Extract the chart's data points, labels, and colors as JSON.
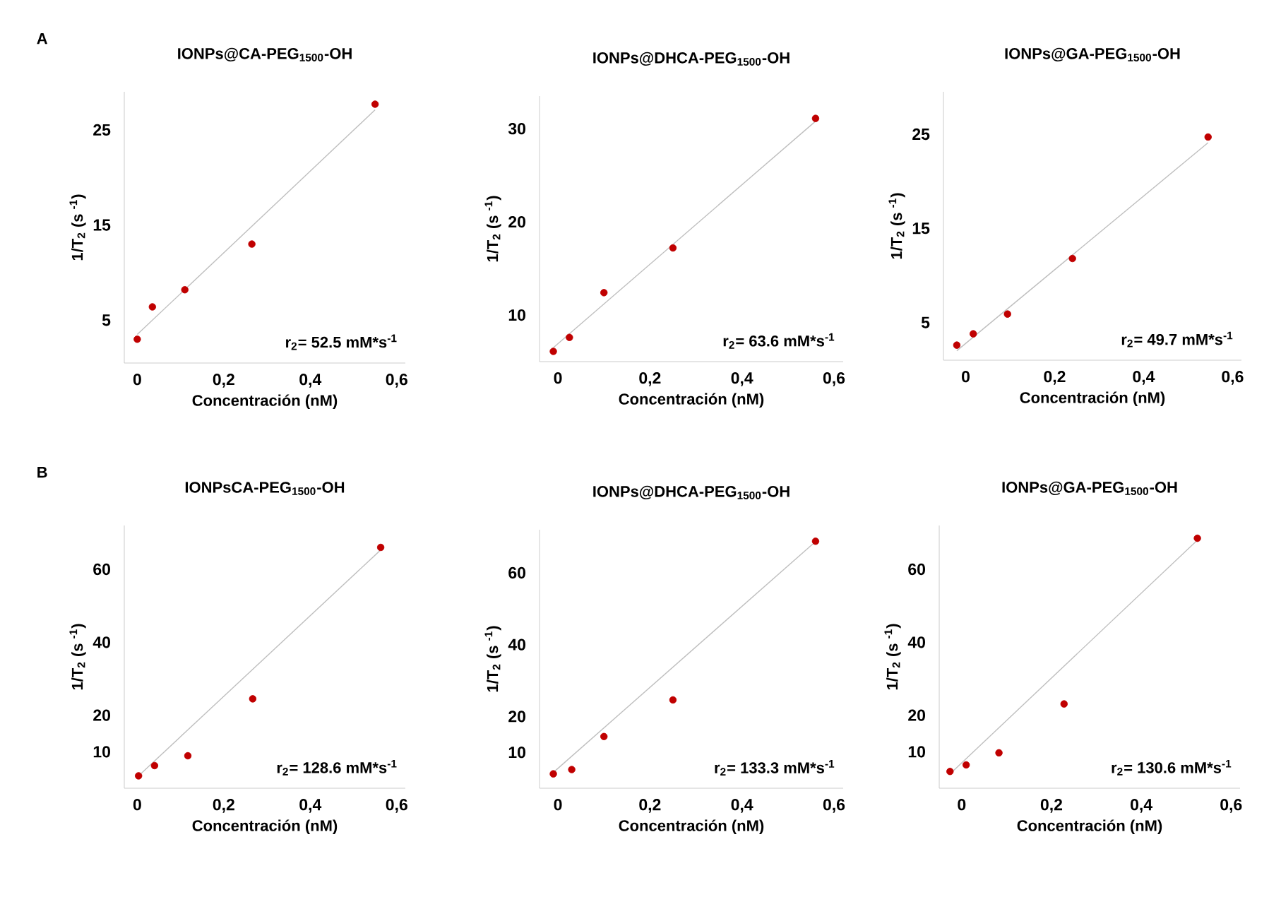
{
  "chart_data": [
    {
      "type": "scatter",
      "title": "IONPs@CA-PEG$_{1500}$-OH",
      "xlabel": "Concentración (nM)",
      "ylabel": "1/T$_{2}$ (s $^{-1}$)",
      "annotations": [
        "r$_{2}$= 52.5 mM*s$^{-1}$",
        "A"
      ],
      "xlim": [
        -0.03,
        0.62
      ],
      "ylim": [
        0.5,
        29
      ],
      "xticks": [
        0,
        {
          "value": 0.2,
          "label": "0,2"
        },
        {
          "value": 0.4,
          "label": "0,4"
        },
        {
          "value": 0.6,
          "label": "0,6"
        }
      ],
      "yticks": [
        5,
        15,
        25
      ],
      "series": [
        {
          "color": "#c00000",
          "x": [
            0,
            0.035,
            0.11,
            0.265,
            0.55
          ],
          "values": [
            3.0,
            6.4,
            8.2,
            13.0,
            27.7
          ]
        },
        {
          "type": "line",
          "color": "#bfbfbf",
          "x": [
            0,
            0.55
          ],
          "values": [
            3.5,
            27.1
          ]
        }
      ]
    },
    {
      "type": "scatter",
      "title": "IONPs@DHCA-PEG$_{1500}$-OH",
      "xlabel": "Concentración (nM)",
      "ylabel": "1/T$_{2}$ (s $^{-1}$)",
      "annotations": [
        "r$_{2}$= 63.6 mM*s$^{-1}$"
      ],
      "xlim": [
        -0.04,
        0.62
      ],
      "ylim": [
        5,
        33.5
      ],
      "xticks": [
        0,
        {
          "value": 0.2,
          "label": "0,2"
        },
        {
          "value": 0.4,
          "label": "0,4"
        },
        {
          "value": 0.6,
          "label": "0,6"
        }
      ],
      "yticks": [
        10,
        20,
        30
      ],
      "series": [
        {
          "color": "#c00000",
          "x": [
            -0.01,
            0.025,
            0.1,
            0.25,
            0.56
          ],
          "values": [
            6.1,
            7.6,
            12.4,
            17.2,
            31.1
          ]
        },
        {
          "type": "line",
          "color": "#bfbfbf",
          "x": [
            -0.01,
            0.56
          ],
          "values": [
            6.5,
            30.8
          ]
        }
      ]
    },
    {
      "type": "scatter",
      "title": "IONPs@GA-PEG$_{1500}$-OH",
      "xlabel": "Concentración (nM)",
      "ylabel": "1/T$_{2}$ (s $^{-1}$)",
      "annotations": [
        "r$_{2}$= 49.7 mM*s$^{-1}$"
      ],
      "xlim": [
        -0.05,
        0.62
      ],
      "ylim": [
        1,
        29.5
      ],
      "xticks": [
        0,
        {
          "value": 0.2,
          "label": "0,2"
        },
        {
          "value": 0.4,
          "label": "0,4"
        },
        {
          "value": 0.6,
          "label": "0,6"
        }
      ],
      "yticks": [
        5,
        15,
        25
      ],
      "series": [
        {
          "color": "#c00000",
          "x": [
            -0.02,
            0.017,
            0.094,
            0.24,
            0.545
          ],
          "values": [
            2.6,
            3.8,
            5.9,
            11.8,
            24.7
          ]
        },
        {
          "type": "line",
          "color": "#bfbfbf",
          "x": [
            -0.02,
            0.545
          ],
          "values": [
            2.0,
            24.1
          ]
        }
      ]
    },
    {
      "type": "scatter",
      "title": "IONPsCA-PEG$_{1500}$-OH",
      "xlabel": "Concentración (nM)",
      "ylabel": "1/T$_{2}$ (s $^{-1}$)",
      "annotations": [
        "r$_{2}$= 128.6 mM*s$^{-1}$",
        "B"
      ],
      "xlim": [
        -0.03,
        0.62
      ],
      "ylim": [
        0,
        72
      ],
      "xticks": [
        0,
        {
          "value": 0.2,
          "label": "0,2"
        },
        {
          "value": 0.4,
          "label": "0,4"
        },
        {
          "value": 0.6,
          "label": "0,6"
        }
      ],
      "yticks": [
        10,
        20,
        40,
        60
      ],
      "series": [
        {
          "color": "#c00000",
          "x": [
            0.003,
            0.04,
            0.117,
            0.267,
            0.563
          ],
          "values": [
            3.4,
            6.2,
            8.9,
            24.5,
            66
          ]
        },
        {
          "type": "line",
          "color": "#bfbfbf",
          "x": [
            0.003,
            0.563
          ],
          "values": [
            3.4,
            65.3
          ]
        }
      ]
    },
    {
      "type": "scatter",
      "title": "IONPs@DHCA-PEG$_{1500}$-OH",
      "xlabel": "Concentración (nM)",
      "ylabel": "1/T$_{2}$ (s $^{-1}$)",
      "annotations": [
        "r$_{2}$= 133.3 mM*s$^{-1}$"
      ],
      "xlim": [
        -0.04,
        0.62
      ],
      "ylim": [
        0,
        72
      ],
      "xticks": [
        0,
        {
          "value": 0.2,
          "label": "0,2"
        },
        {
          "value": 0.4,
          "label": "0,4"
        },
        {
          "value": 0.6,
          "label": "0,6"
        }
      ],
      "yticks": [
        10,
        20,
        40,
        60
      ],
      "series": [
        {
          "color": "#c00000",
          "x": [
            -0.01,
            0.03,
            0.1,
            0.25,
            0.56
          ],
          "values": [
            4.0,
            5.2,
            14.4,
            24.6,
            68.8
          ]
        },
        {
          "type": "line",
          "color": "#bfbfbf",
          "x": [
            -0.01,
            0.56
          ],
          "values": [
            4.4,
            68.7
          ]
        }
      ]
    },
    {
      "type": "scatter",
      "title": "IONPs@GA-PEG$_{1500}$-OH",
      "xlabel": "Concentración (nM)",
      "ylabel": "1/T$_{2}$ (s $^{-1}$)",
      "annotations": [
        "r$_{2}$= 130.6 mM*s$^{-1}$"
      ],
      "xlim": [
        -0.05,
        0.62
      ],
      "ylim": [
        0,
        72
      ],
      "xticks": [
        0,
        {
          "value": 0.2,
          "label": "0,2"
        },
        {
          "value": 0.4,
          "label": "0,4"
        },
        {
          "value": 0.6,
          "label": "0,6"
        }
      ],
      "yticks": [
        10,
        20,
        40,
        60
      ],
      "series": [
        {
          "color": "#c00000",
          "x": [
            -0.026,
            0.01,
            0.083,
            0.228,
            0.525
          ],
          "values": [
            4.6,
            6.4,
            9.7,
            23.1,
            68.5
          ]
        },
        {
          "type": "line",
          "color": "#bfbfbf",
          "x": [
            -0.026,
            0.525
          ],
          "values": [
            3.9,
            68.0
          ]
        }
      ]
    }
  ]
}
